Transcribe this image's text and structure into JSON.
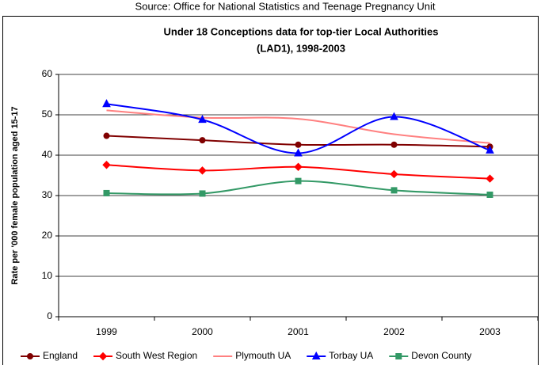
{
  "chart_data": {
    "type": "line",
    "source": "Source: Office for National Statistics and Teenage Pregnancy Unit",
    "title": "Under 18 Conceptions data for top-tier Local Authorities",
    "subtitle": "(LAD1), 1998-2003",
    "y_label": "Rate per '000 female population aged 15-17",
    "categories": [
      "1999",
      "2000",
      "2001",
      "2002",
      "2003"
    ],
    "series": [
      {
        "name": "England",
        "color": "#800000",
        "marker": "circle",
        "values": [
          44.8,
          43.7,
          42.6,
          42.6,
          42.1
        ]
      },
      {
        "name": "South West Region",
        "color": "#ff0000",
        "marker": "diamond",
        "values": [
          37.6,
          36.2,
          37.1,
          35.3,
          34.2
        ]
      },
      {
        "name": "Plymouth UA",
        "color": "#ff8080",
        "marker": "none",
        "values": [
          51.1,
          49.3,
          49.0,
          45.2,
          43.0
        ]
      },
      {
        "name": "Torbay UA",
        "color": "#0000ff",
        "marker": "triangle",
        "values": [
          52.7,
          48.8,
          40.5,
          49.5,
          41.2
        ]
      },
      {
        "name": "Devon County",
        "color": "#339966",
        "marker": "square",
        "values": [
          30.6,
          30.5,
          33.6,
          31.3,
          30.2
        ]
      }
    ],
    "ylim": [
      0,
      60
    ],
    "yticks": [
      0,
      10,
      20,
      30,
      40,
      50,
      60
    ],
    "grid": true,
    "smooth": true,
    "legend": "bottom"
  }
}
